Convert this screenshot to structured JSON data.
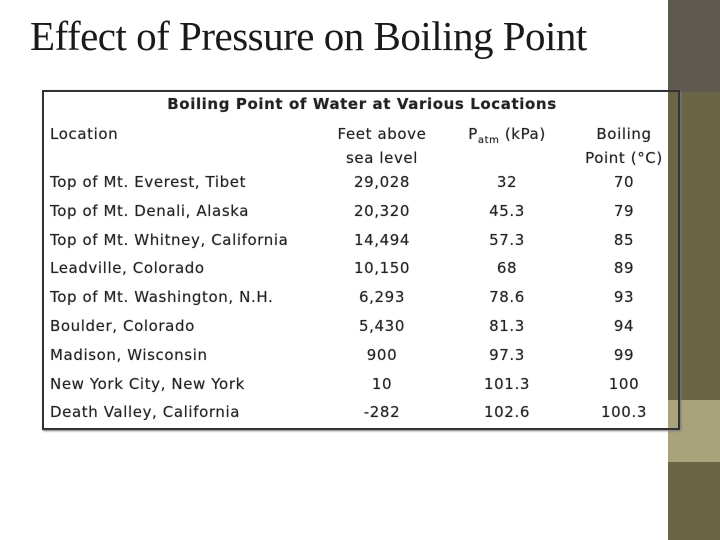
{
  "title": "Effect of Pressure on Boiling Point",
  "table": {
    "title": "Boiling Point of Water at Various Locations",
    "headers": [
      {
        "lines": [
          "Location"
        ]
      },
      {
        "lines": [
          "Feet above",
          "sea level"
        ]
      },
      {
        "main": "P",
        "sub": "atm",
        "rest": " (kPa)"
      },
      {
        "lines": [
          "Boiling",
          "Point (°C)"
        ]
      }
    ],
    "rows": [
      [
        "Top of Mt. Everest, Tibet",
        "29,028",
        "32",
        "70"
      ],
      [
        "Top of Mt. Denali, Alaska",
        "20,320",
        "45.3",
        "79"
      ],
      [
        "Top of Mt. Whitney, California",
        "14,494",
        "57.3",
        "85"
      ],
      [
        "Leadville, Colorado",
        "10,150",
        "68",
        "89"
      ],
      [
        "Top of Mt. Washington, N.H.",
        "6,293",
        "78.6",
        "93"
      ],
      [
        "Boulder, Colorado",
        "5,430",
        "81.3",
        "94"
      ],
      [
        "Madison, Wisconsin",
        "900",
        "97.3",
        "99"
      ],
      [
        "New York City, New York",
        "10",
        "101.3",
        "100"
      ],
      [
        "Death Valley, California",
        "-282",
        "102.6",
        "100.3"
      ]
    ]
  }
}
